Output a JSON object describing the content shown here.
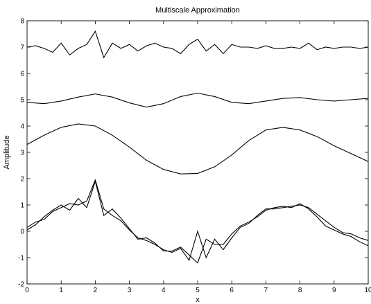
{
  "chart_data": {
    "type": "line",
    "title": "Multiscale Approximation",
    "xlabel": "x",
    "ylabel": "Amplitude",
    "xlim": [
      0,
      10
    ],
    "ylim": [
      -2,
      8
    ],
    "xticks": [
      0,
      1,
      2,
      3,
      4,
      5,
      6,
      7,
      8,
      9,
      10
    ],
    "yticks": [
      -2,
      -1,
      0,
      1,
      2,
      3,
      4,
      5,
      6,
      7,
      8
    ],
    "grid": false,
    "legend": "none",
    "series": [
      {
        "x": [
          0,
          0.25,
          0.5,
          0.75,
          1,
          1.25,
          1.5,
          1.75,
          2,
          2.25,
          2.5,
          2.75,
          3,
          3.25,
          3.5,
          3.75,
          4,
          4.25,
          4.5,
          4.75,
          5,
          5.25,
          5.5,
          5.75,
          6,
          6.25,
          6.5,
          6.75,
          7,
          7.25,
          7.5,
          7.75,
          8,
          8.25,
          8.5,
          8.75,
          9,
          9.25,
          9.5,
          9.75,
          10
        ],
        "y": [
          7.0,
          7.05,
          6.95,
          6.8,
          7.15,
          6.7,
          6.95,
          7.1,
          7.6,
          6.6,
          7.15,
          6.95,
          7.1,
          6.85,
          7.05,
          7.15,
          7.0,
          6.95,
          6.75,
          7.1,
          7.3,
          6.85,
          7.1,
          6.75,
          7.1,
          7.0,
          7.0,
          6.95,
          7.05,
          6.95,
          6.95,
          7.0,
          6.95,
          7.15,
          6.9,
          7.0,
          6.95,
          7.0,
          7.0,
          6.95,
          7.0
        ]
      },
      {
        "x": [
          0,
          0.5,
          1,
          1.5,
          2,
          2.5,
          3,
          3.5,
          4,
          4.5,
          5,
          5.5,
          6,
          6.5,
          7,
          7.5,
          8,
          8.5,
          9,
          9.5,
          10
        ],
        "y": [
          4.9,
          4.85,
          4.95,
          5.1,
          5.22,
          5.1,
          4.88,
          4.72,
          4.85,
          5.12,
          5.25,
          5.12,
          4.9,
          4.85,
          4.95,
          5.05,
          5.08,
          5.0,
          4.95,
          5.0,
          5.05
        ]
      },
      {
        "x": [
          0,
          0.5,
          1,
          1.5,
          2,
          2.5,
          3,
          3.5,
          4,
          4.5,
          5,
          5.5,
          6,
          6.5,
          7,
          7.5,
          8,
          8.5,
          9,
          9.5,
          10
        ],
        "y": [
          3.3,
          3.65,
          3.95,
          4.08,
          4.0,
          3.65,
          3.2,
          2.7,
          2.35,
          2.18,
          2.2,
          2.45,
          2.9,
          3.45,
          3.85,
          3.95,
          3.85,
          3.6,
          3.25,
          2.95,
          2.65
        ]
      },
      {
        "x": [
          0,
          0.25,
          0.5,
          0.75,
          1,
          1.25,
          1.5,
          1.75,
          2,
          2.25,
          2.5,
          2.75,
          3,
          3.25,
          3.5,
          3.75,
          4,
          4.25,
          4.5,
          4.75,
          5,
          5.25,
          5.5,
          5.75,
          6,
          6.25,
          6.5,
          6.75,
          7,
          7.25,
          7.5,
          7.75,
          8,
          8.25,
          8.5,
          8.75,
          9,
          9.25,
          9.5,
          9.75,
          10
        ],
        "y": [
          0.05,
          0.25,
          0.55,
          0.8,
          1.0,
          0.8,
          1.25,
          0.9,
          1.9,
          0.6,
          0.85,
          0.5,
          0.1,
          -0.3,
          -0.25,
          -0.45,
          -0.75,
          -0.75,
          -0.6,
          -0.9,
          -1.2,
          -0.3,
          -0.5,
          -0.5,
          -0.1,
          0.2,
          0.35,
          0.55,
          0.8,
          0.9,
          0.95,
          0.9,
          1.05,
          0.85,
          0.55,
          0.2,
          0.05,
          -0.1,
          -0.2,
          -0.4,
          -0.55
        ]
      },
      {
        "x": [
          0,
          0.25,
          0.5,
          0.75,
          1,
          1.25,
          1.5,
          1.75,
          2,
          2.25,
          2.5,
          2.75,
          3,
          3.25,
          3.5,
          3.75,
          4,
          4.25,
          4.5,
          4.75,
          5,
          5.25,
          5.5,
          5.75,
          6,
          6.25,
          6.5,
          6.75,
          7,
          7.25,
          7.5,
          7.75,
          8,
          8.25,
          8.5,
          8.75,
          9,
          9.25,
          9.5,
          9.75,
          10
        ],
        "y": [
          0.15,
          0.35,
          0.45,
          0.75,
          0.9,
          1.05,
          1.0,
          1.15,
          1.95,
          0.85,
          0.6,
          0.4,
          0.05,
          -0.25,
          -0.35,
          -0.5,
          -0.7,
          -0.8,
          -0.65,
          -1.1,
          0.0,
          -1.0,
          -0.3,
          -0.7,
          -0.25,
          0.15,
          0.3,
          0.6,
          0.85,
          0.85,
          0.9,
          0.95,
          1.0,
          0.9,
          0.65,
          0.4,
          0.15,
          -0.05,
          -0.1,
          -0.25,
          -0.35
        ]
      }
    ]
  }
}
